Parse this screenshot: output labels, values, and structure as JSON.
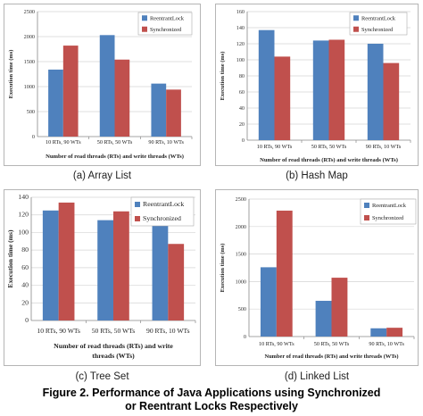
{
  "chart_data": [
    {
      "type": "bar",
      "subplot_caption": "(a) Array List",
      "categories": [
        "10 RTs, 90 WTs",
        "50 RTs, 50 WTs",
        "90 RTs, 10 WTs"
      ],
      "series": [
        {
          "name": "ReentrantLock",
          "values": [
            1340,
            2030,
            1060
          ]
        },
        {
          "name": "Synchronized",
          "values": [
            1820,
            1540,
            940
          ]
        }
      ],
      "ylabel": "Execution time (ms)",
      "xlabel_lines": [
        "Number of read threads (RTs) and write threads (WTs)"
      ],
      "ylim": [
        0,
        2500
      ],
      "yticks": [
        "0",
        "500",
        "1000",
        "1500",
        "2000",
        "2500"
      ],
      "grid": true,
      "legend_position": "top-right"
    },
    {
      "type": "bar",
      "subplot_caption": "(b) Hash Map",
      "categories": [
        "10 RTs, 90 WTs",
        "50 RTs, 50 WTs",
        "90 RTs, 10 WTs"
      ],
      "series": [
        {
          "name": "ReentrantLock",
          "values": [
            137,
            124,
            120
          ]
        },
        {
          "name": "Synchronized",
          "values": [
            104,
            125,
            96
          ]
        }
      ],
      "ylabel": "Execution time (ms)",
      "xlabel_lines": [
        "Number of read threads (RTs) and write threads (WTs)"
      ],
      "ylim": [
        0,
        160
      ],
      "yticks": [
        "0",
        "20",
        "40",
        "60",
        "80",
        "100",
        "120",
        "140",
        "160"
      ],
      "grid": true,
      "legend_position": "top-right"
    },
    {
      "type": "bar",
      "subplot_caption": "(c) Tree Set",
      "categories": [
        "10 RTs, 90 WTs",
        "50 RTs, 50 WTs",
        "90 RTs, 10 WTs"
      ],
      "series": [
        {
          "name": "ReentrantLock",
          "values": [
            125,
            114,
            113
          ]
        },
        {
          "name": "Synchronized",
          "values": [
            134,
            124,
            87
          ]
        }
      ],
      "ylabel": "Execution time (ms)",
      "xlabel_lines": [
        "Number of read threads (RTs) and write",
        "threads (WTs)"
      ],
      "ylim": [
        0,
        140
      ],
      "yticks": [
        "0",
        "20",
        "40",
        "60",
        "80",
        "100",
        "120",
        "140"
      ],
      "grid": true,
      "legend_position": "top-right"
    },
    {
      "type": "bar",
      "subplot_caption": "(d) Linked List",
      "categories": [
        "10 RTs, 90 WTs",
        "50 RTs, 50 WTs",
        "90 RTs, 10 WTs"
      ],
      "series": [
        {
          "name": "ReentrantLock",
          "values": [
            1260,
            650,
            150
          ]
        },
        {
          "name": "Synchronized",
          "values": [
            2290,
            1070,
            160
          ]
        }
      ],
      "ylabel": "Execution time (ms)",
      "xlabel_lines": [
        "Number of read threads (RTs) and write threads (WTs)"
      ],
      "ylim": [
        0,
        2500
      ],
      "yticks": [
        "0",
        "500",
        "1000",
        "1500",
        "2000",
        "2500"
      ],
      "grid": true,
      "legend_position": "top-right"
    }
  ],
  "colors": {
    "reentrant": "#4f81bd",
    "synchronized": "#c0504d",
    "grid": "#d4d4d4",
    "axis": "#888888"
  },
  "figure_caption": {
    "line1": "Figure 2. Performance of Java Applications using Synchronized",
    "line2": "or Reentrant Locks Respectively"
  }
}
